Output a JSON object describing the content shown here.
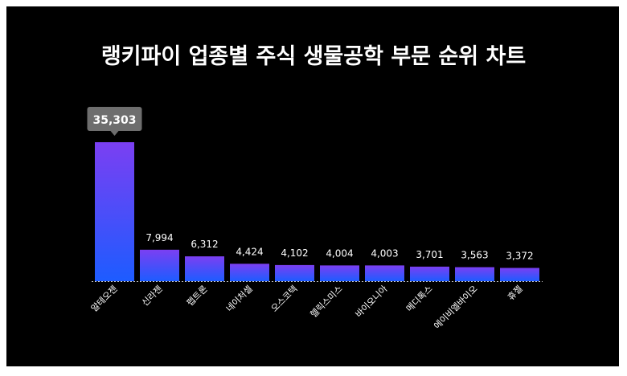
{
  "chart_data": {
    "type": "bar",
    "title": "랭키파이 업종별 주식 생물공학 부문 순위 차트",
    "categories": [
      "알테오젠",
      "신라젠",
      "펩트론",
      "네이처셀",
      "오스코텍",
      "헬릭스미스",
      "바이오니아",
      "메디톡스",
      "에이비엘바이오",
      "휴젤"
    ],
    "values": [
      35303,
      7994,
      6312,
      4424,
      4102,
      4004,
      4003,
      3701,
      3563,
      3372
    ],
    "value_labels": [
      "35,303",
      "7,994",
      "6,312",
      "4,424",
      "4,102",
      "4,004",
      "4,003",
      "3,701",
      "3,563",
      "3,372"
    ],
    "ylim": [
      0,
      35303
    ],
    "highlight_index": 0,
    "grid": false,
    "legend": "none",
    "colors": {
      "background": "#000000",
      "bar_top": "#7b3ff2",
      "bar_bottom": "#1d5cff",
      "baseline": "#cfcfcf",
      "text": "#ffffff",
      "callout_bg": "#6e6e6e"
    }
  }
}
